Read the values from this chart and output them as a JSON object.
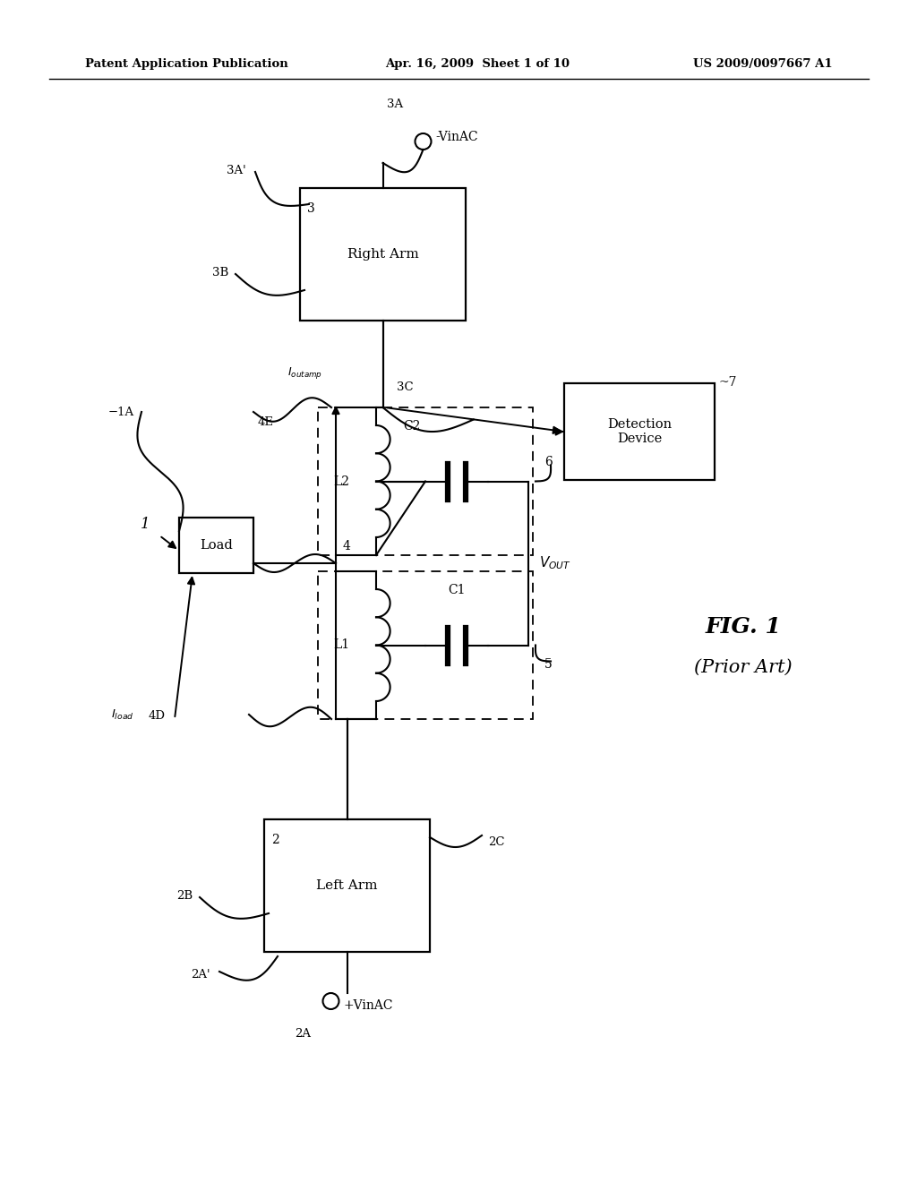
{
  "bg": "#ffffff",
  "header_left": "Patent Application Publication",
  "header_center": "Apr. 16, 2009  Sheet 1 of 10",
  "header_right": "US 2009/0097667 A1",
  "fig_label": "FIG. 1",
  "fig_sublabel": "(Prior Art)"
}
